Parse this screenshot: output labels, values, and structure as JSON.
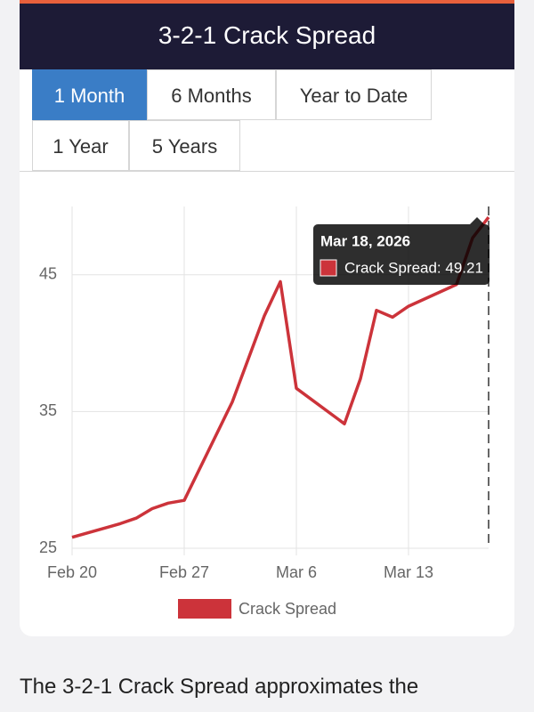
{
  "header": {
    "title": "3-2-1 Crack Spread"
  },
  "tabs": [
    "1 Month",
    "6 Months",
    "Year to Date",
    "1 Year",
    "5 Years"
  ],
  "active_tab": "1 Month",
  "chart_data": {
    "type": "line",
    "x": [
      "2026-02-20",
      "2026-02-23",
      "2026-02-24",
      "2026-02-25",
      "2026-02-26",
      "2026-02-27",
      "2026-03-02",
      "2026-03-04",
      "2026-03-05",
      "2026-03-06",
      "2026-03-09",
      "2026-03-10",
      "2026-03-11",
      "2026-03-12",
      "2026-03-13",
      "2026-03-16",
      "2026-03-17",
      "2026-03-18"
    ],
    "series": [
      {
        "name": "Crack Spread",
        "color": "#cc333a",
        "values": [
          25.8,
          26.8,
          27.2,
          27.9,
          28.3,
          28.5,
          35.7,
          42.0,
          44.5,
          36.7,
          34.1,
          37.4,
          42.4,
          41.9,
          42.7,
          44.3,
          47.7,
          49.21
        ]
      }
    ],
    "xlim": [
      "2026-02-20",
      "2026-03-18"
    ],
    "xticks": [
      {
        "value": "2026-02-20",
        "label": "Feb 20"
      },
      {
        "value": "2026-02-27",
        "label": "Feb 27"
      },
      {
        "value": "2026-03-06",
        "label": "Mar 6"
      },
      {
        "value": "2026-03-13",
        "label": "Mar 13"
      }
    ],
    "ylim": [
      25,
      50
    ],
    "yticks": [
      25,
      35,
      45
    ],
    "grid": true,
    "tooltip": {
      "index": 17,
      "title": "Mar 18, 2026",
      "label": "Crack Spread: 49.21"
    }
  },
  "footer_text": "The 3-2-1 Crack Spread approximates the"
}
